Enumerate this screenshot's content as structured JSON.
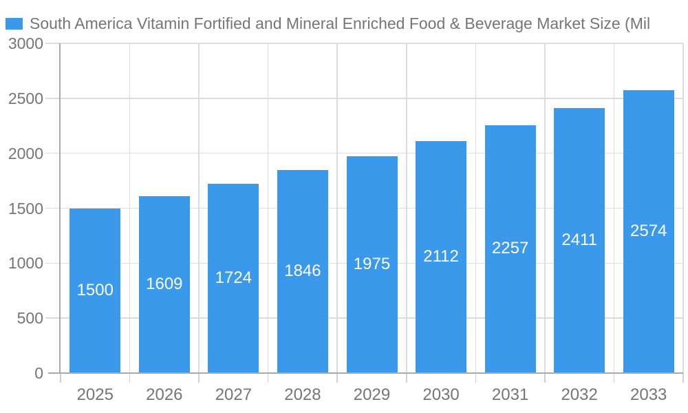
{
  "legend": {
    "label": "South America Vitamin Fortified and Mineral Enriched Food & Beverage Market Size (Mil"
  },
  "colors": {
    "bar": "#3b99ec",
    "grid": "#dcdcdc",
    "tick": "#d0d0d0",
    "axis": "#a9a9a9",
    "text": "#757575",
    "value_label": "#ffffff",
    "background": "#ffffff"
  },
  "chart_data": {
    "type": "bar",
    "title": "South America Vitamin Fortified and Mineral Enriched Food & Beverage Market Size (Mil",
    "categories": [
      "2025",
      "2026",
      "2027",
      "2028",
      "2029",
      "2030",
      "2031",
      "2032",
      "2033"
    ],
    "series": [
      {
        "name": "South America Vitamin Fortified and Mineral Enriched Food & Beverage Market Size (Mil",
        "values": [
          1500,
          1609,
          1724,
          1846,
          1975,
          2112,
          2257,
          2411,
          2574
        ]
      }
    ],
    "xlabel": "",
    "ylabel": "",
    "ylim": [
      0,
      3000
    ],
    "yticks": [
      0,
      500,
      1000,
      1500,
      2000,
      2500,
      3000
    ],
    "grid": true,
    "value_labels": "inside-center",
    "legend_position": "top-left"
  }
}
